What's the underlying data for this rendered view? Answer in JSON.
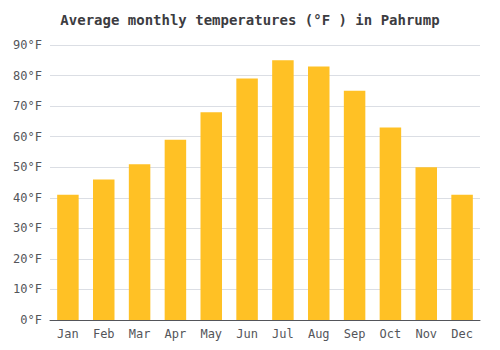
{
  "chart_data": {
    "type": "bar",
    "title": "Average monthly temperatures (°F ) in Pahrump",
    "categories": [
      "Jan",
      "Feb",
      "Mar",
      "Apr",
      "May",
      "Jun",
      "Jul",
      "Aug",
      "Sep",
      "Oct",
      "Nov",
      "Dec"
    ],
    "values": [
      41,
      46,
      51,
      59,
      68,
      79,
      85,
      83,
      75,
      63,
      50,
      41
    ],
    "color": "#FFC125",
    "ylim": [
      0,
      90
    ],
    "yticks": [
      {
        "value": 0,
        "label": "0°F"
      },
      {
        "value": 10,
        "label": "10°F"
      },
      {
        "value": 20,
        "label": "20°F"
      },
      {
        "value": 30,
        "label": "30°F"
      },
      {
        "value": 40,
        "label": "40°F"
      },
      {
        "value": 50,
        "label": "50°F"
      },
      {
        "value": 60,
        "label": "60°F"
      },
      {
        "value": 70,
        "label": "70°F"
      },
      {
        "value": 80,
        "label": "80°F"
      },
      {
        "value": 90,
        "label": "90°F"
      }
    ],
    "grid": true
  }
}
